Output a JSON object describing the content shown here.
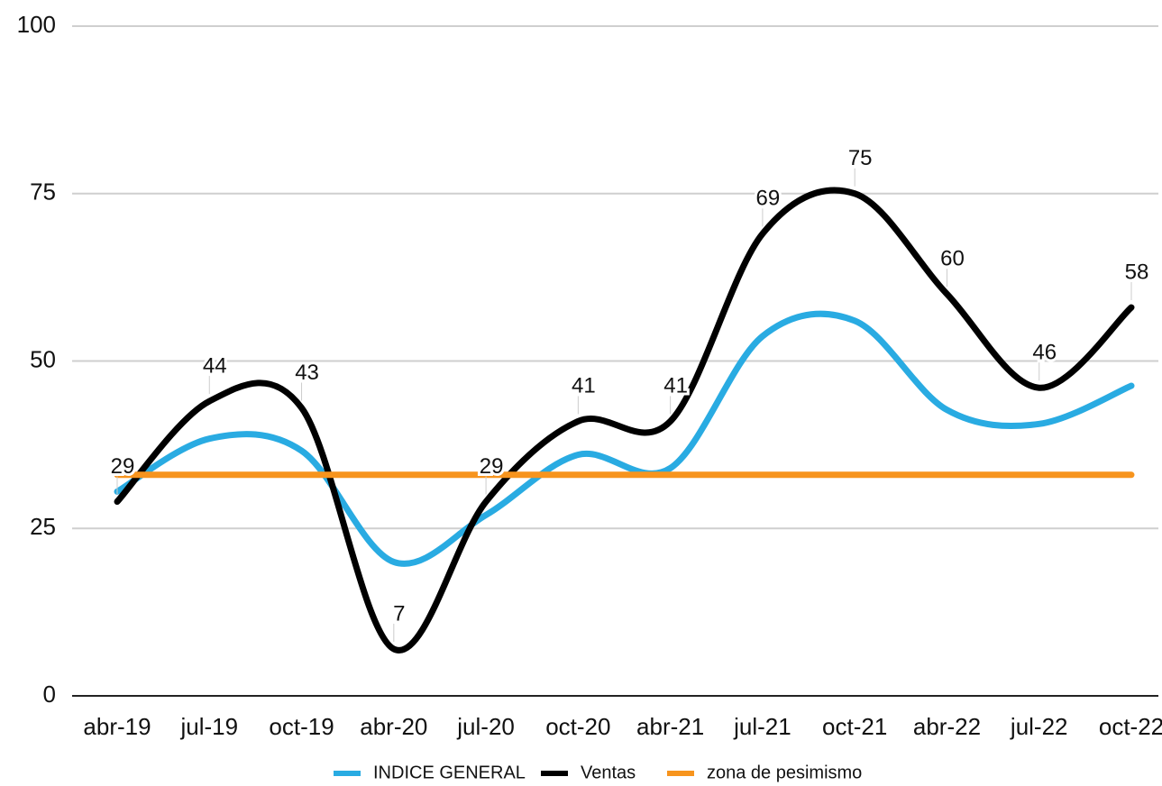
{
  "chart_data": {
    "type": "line",
    "categories": [
      "abr-19",
      "jul-19",
      "oct-19",
      "abr-20",
      "jul-20",
      "oct-20",
      "abr-21",
      "jul-21",
      "oct-21",
      "abr-22",
      "jul-22",
      "oct-22"
    ],
    "series": [
      {
        "name": "INDICE GENERAL",
        "color": "#29abe2",
        "values": [
          30.5,
          38.4,
          36.6,
          20,
          27,
          36,
          34,
          53.7,
          56,
          42.7,
          40.6,
          46.3
        ]
      },
      {
        "name": "Ventas",
        "color": "#000000",
        "values": [
          29,
          44,
          43,
          7,
          29,
          41,
          41,
          69,
          75,
          60,
          46,
          58
        ],
        "data_labels": true
      },
      {
        "name": "zona de pesimismo",
        "color": "#f7941d",
        "values": [
          33,
          33,
          33,
          33,
          33,
          33,
          33,
          33,
          33,
          33,
          33,
          33
        ]
      }
    ],
    "ylim": [
      0,
      100
    ],
    "yticks": [
      0,
      25,
      50,
      75,
      100
    ],
    "grid": true,
    "smooth": true,
    "legend": "bottom"
  }
}
